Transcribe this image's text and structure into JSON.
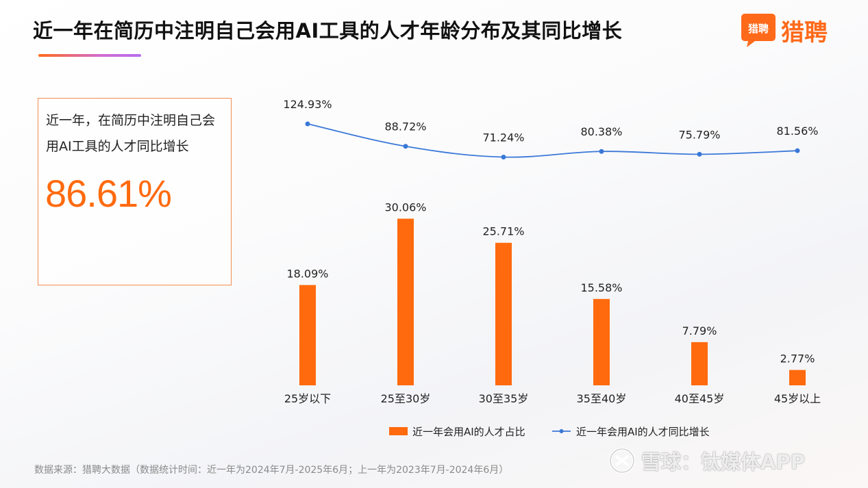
{
  "title": "近一年在简历中注明自己会用AI工具的人才年龄分布及其同比增长",
  "brand": {
    "badge_text": "猎聘",
    "name": "猎聘",
    "color": "#ff6a1a"
  },
  "kpi": {
    "label": "近一年，在简历中注明自己会用AI工具的人才同比增长",
    "value": "86.61%"
  },
  "chart_data": {
    "type": "bar",
    "categories": [
      "25岁以下",
      "25至30岁",
      "30至35岁",
      "35至40岁",
      "40至45岁",
      "45岁以上"
    ],
    "series": [
      {
        "name": "近一年会用AI的人才占比",
        "type": "bar",
        "color": "#ff6a0e",
        "values": [
          18.09,
          30.06,
          25.71,
          15.58,
          7.79,
          2.77
        ],
        "labels": [
          "18.09%",
          "30.06%",
          "25.71%",
          "15.58%",
          "7.79%",
          "2.77%"
        ]
      },
      {
        "name": "近一年会用AI的人才同比增长",
        "type": "line",
        "color": "#3a78d8",
        "values": [
          124.93,
          88.72,
          71.24,
          80.38,
          75.79,
          81.56
        ],
        "labels": [
          "124.93%",
          "88.72%",
          "71.24%",
          "80.38%",
          "75.79%",
          "81.56%"
        ]
      }
    ],
    "legend_position": "bottom-center"
  },
  "footer": "数据来源：猎聘大数据（数据统计时间：近一年为2024年7月-2025年6月；上一年为2023年7月-2024年6月）",
  "watermark": "雪球：钛媒体APP"
}
